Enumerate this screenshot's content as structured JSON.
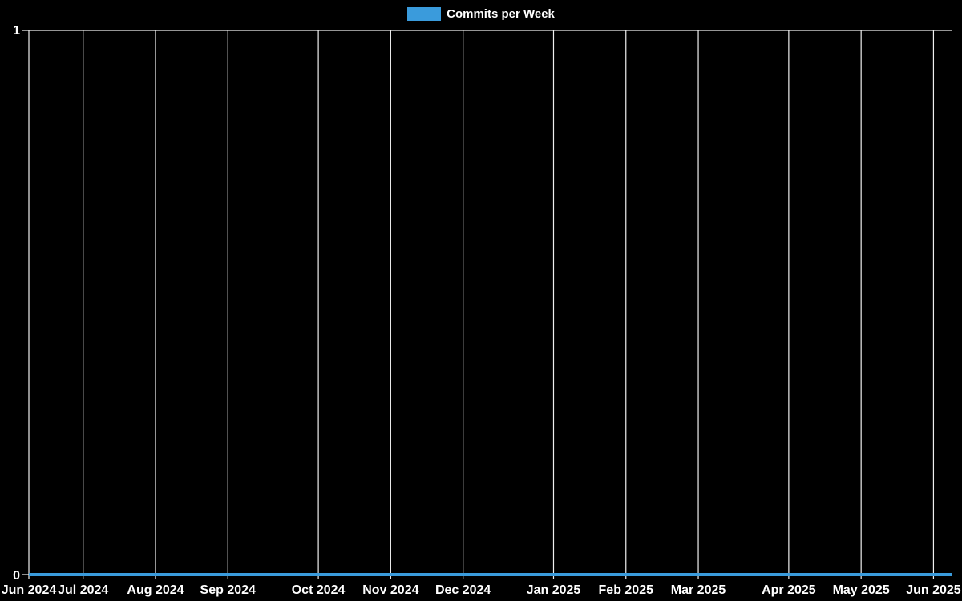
{
  "legend": {
    "label": "Commits per Week",
    "swatch_color": "#3A9BDC"
  },
  "chart_data": {
    "type": "line",
    "title": "",
    "xlabel": "",
    "ylabel": "",
    "x_unit": "week",
    "x_start": "Jun 2024",
    "x_end": "Jun 2025",
    "total_weeks": 52,
    "x_tick_labels": [
      "Jun 2024",
      "Jul 2024",
      "Aug 2024",
      "Sep 2024",
      "Oct 2024",
      "Nov 2024",
      "Dec 2024",
      "Jan 2025",
      "Feb 2025",
      "Mar 2025",
      "Apr 2025",
      "May 2025",
      "Jun 2025"
    ],
    "x_tick_week_indices": [
      0,
      3,
      7,
      11,
      16,
      20,
      24,
      29,
      33,
      37,
      42,
      46,
      50
    ],
    "y_ticks": [
      0,
      1
    ],
    "ylim": [
      0,
      1
    ],
    "grid": "vertical-only",
    "legend_position": "top-center",
    "background_color": "#000000",
    "grid_color": "#f0f0f0",
    "text_color": "#ffffff",
    "series": [
      {
        "name": "Commits per Week",
        "color": "#3A9BDC",
        "values": [
          0,
          0,
          0,
          0,
          0,
          0,
          0,
          0,
          0,
          0,
          0,
          0,
          0,
          0,
          0,
          0,
          0,
          0,
          0,
          0,
          0,
          0,
          0,
          0,
          0,
          0,
          0,
          0,
          0,
          0,
          0,
          0,
          0,
          0,
          0,
          0,
          0,
          0,
          0,
          0,
          0,
          0,
          0,
          0,
          0,
          0,
          0,
          0,
          0,
          0,
          0,
          0
        ]
      }
    ]
  }
}
